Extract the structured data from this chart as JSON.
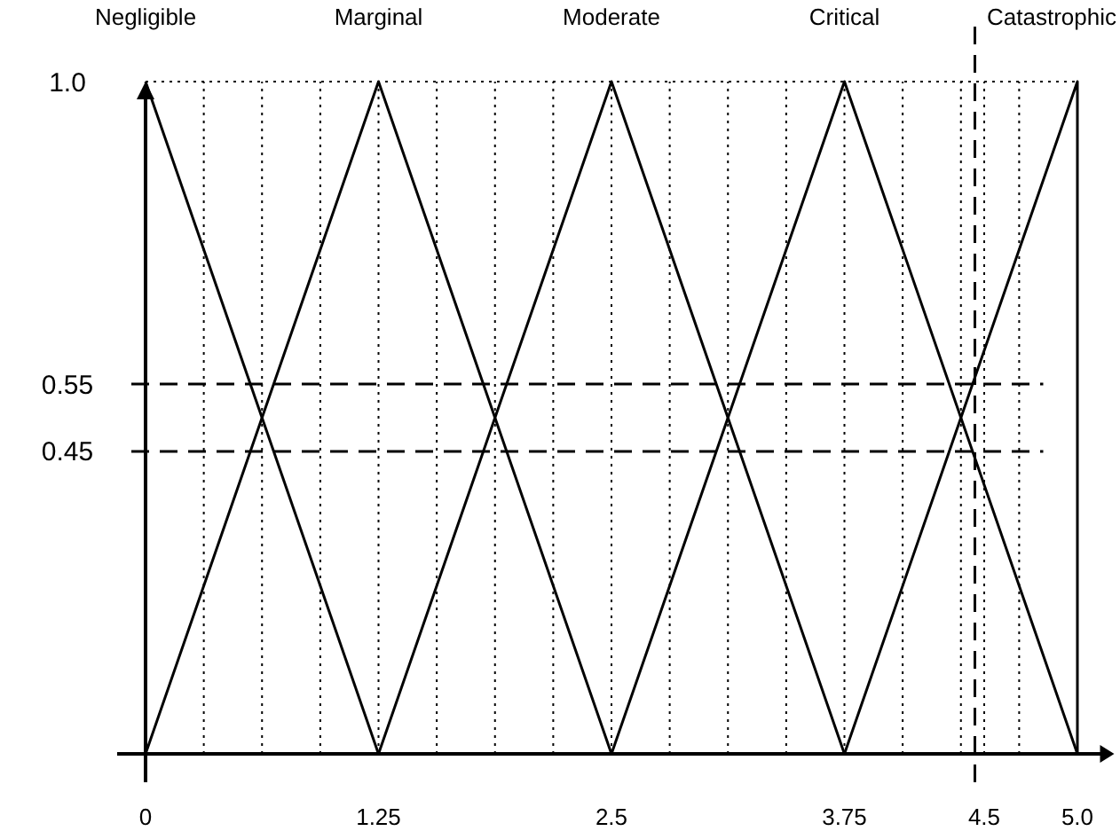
{
  "chart_data": {
    "type": "line",
    "xlim": [
      0,
      5.15
    ],
    "ylim": [
      0,
      1
    ],
    "xticks": [
      0,
      {
        "value": 0.3125,
        "label": null
      },
      {
        "value": 0.625,
        "label": null
      },
      {
        "value": 0.9375,
        "label": null
      },
      1.25,
      {
        "value": 1.5625,
        "label": null
      },
      {
        "value": 1.875,
        "label": null
      },
      {
        "value": 2.1875,
        "label": null
      },
      2.5,
      {
        "value": 2.8125,
        "label": null
      },
      {
        "value": 3.125,
        "label": null
      },
      {
        "value": 3.4375,
        "label": null
      },
      3.75,
      {
        "value": 4.0625,
        "label": null
      },
      {
        "value": 4.375,
        "label": null
      },
      {
        "value": 4.5,
        "label": "4.5"
      },
      {
        "value": 4.6875,
        "label": null
      },
      {
        "value": 5,
        "label": "5.0"
      }
    ],
    "yticks": [
      {
        "value": 1,
        "label": "1.0"
      },
      0.55,
      0.45
    ],
    "grid": true,
    "legend": false,
    "marker": "none",
    "line_style": "solid",
    "series": [
      {
        "name": "Negligible",
        "color": "#000000",
        "x": [
          0,
          1.25
        ],
        "values": [
          1,
          0
        ]
      },
      {
        "name": "Marginal",
        "color": "#000000",
        "x": [
          0,
          1.25,
          2.5
        ],
        "values": [
          0,
          1,
          0
        ]
      },
      {
        "name": "Moderate",
        "color": "#000000",
        "x": [
          1.25,
          2.5,
          3.75
        ],
        "values": [
          0,
          1,
          0
        ]
      },
      {
        "name": "Critical",
        "color": "#000000",
        "x": [
          2.5,
          3.75,
          5
        ],
        "values": [
          0,
          1,
          0
        ]
      },
      {
        "name": "Catastrophic",
        "color": "#000000",
        "x": [
          3.75,
          5,
          5
        ],
        "values": [
          0,
          1,
          0
        ]
      }
    ],
    "ref_lines": [
      {
        "axis": "y",
        "value": 0.55,
        "line_style": "dashed"
      },
      {
        "axis": "y",
        "value": 0.45,
        "line_style": "dashed"
      },
      {
        "axis": "x",
        "value": 4.45,
        "line_style": "dashed"
      }
    ]
  }
}
